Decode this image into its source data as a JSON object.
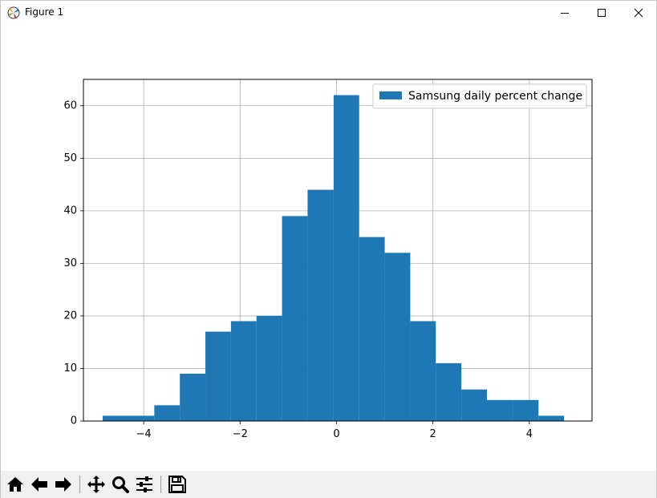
{
  "window": {
    "title": "Figure 1",
    "controls": [
      "minimize",
      "maximize",
      "close"
    ]
  },
  "toolbar": {
    "buttons": [
      {
        "name": "home-icon",
        "tooltip": "Reset original view"
      },
      {
        "name": "back-icon",
        "tooltip": "Back"
      },
      {
        "name": "forward-icon",
        "tooltip": "Forward"
      },
      {
        "name": "pan-icon",
        "tooltip": "Pan"
      },
      {
        "name": "zoom-icon",
        "tooltip": "Zoom"
      },
      {
        "name": "configure-subplots-icon",
        "tooltip": "Configure subplots"
      },
      {
        "name": "save-icon",
        "tooltip": "Save"
      }
    ]
  },
  "chart_data": {
    "type": "bar",
    "subtype": "histogram",
    "title": "",
    "xlabel": "",
    "ylabel": "",
    "xlim": [
      -5.25,
      5.3
    ],
    "ylim": [
      0,
      65
    ],
    "xticks": [
      -4,
      -2,
      0,
      2,
      4
    ],
    "xtick_labels": [
      "−4",
      "−2",
      "0",
      "2",
      "4"
    ],
    "yticks": [
      0,
      10,
      20,
      30,
      40,
      50,
      60
    ],
    "ytick_labels": [
      "0",
      "10",
      "20",
      "30",
      "40",
      "50",
      "60"
    ],
    "grid": true,
    "legend_position": "top-right",
    "color": "#1f77b4",
    "series": [
      {
        "name": "Samsung daily percent change",
        "bin_edges": [
          -4.85,
          -4.31,
          -3.78,
          -3.25,
          -2.72,
          -2.19,
          -1.66,
          -1.13,
          -0.6,
          -0.06,
          0.47,
          1.0,
          1.53,
          2.06,
          2.59,
          3.12,
          3.66,
          4.19,
          4.72
        ],
        "values": [
          1,
          1,
          3,
          9,
          17,
          19,
          20,
          39,
          44,
          62,
          35,
          32,
          19,
          11,
          6,
          4,
          4,
          1
        ]
      }
    ]
  }
}
